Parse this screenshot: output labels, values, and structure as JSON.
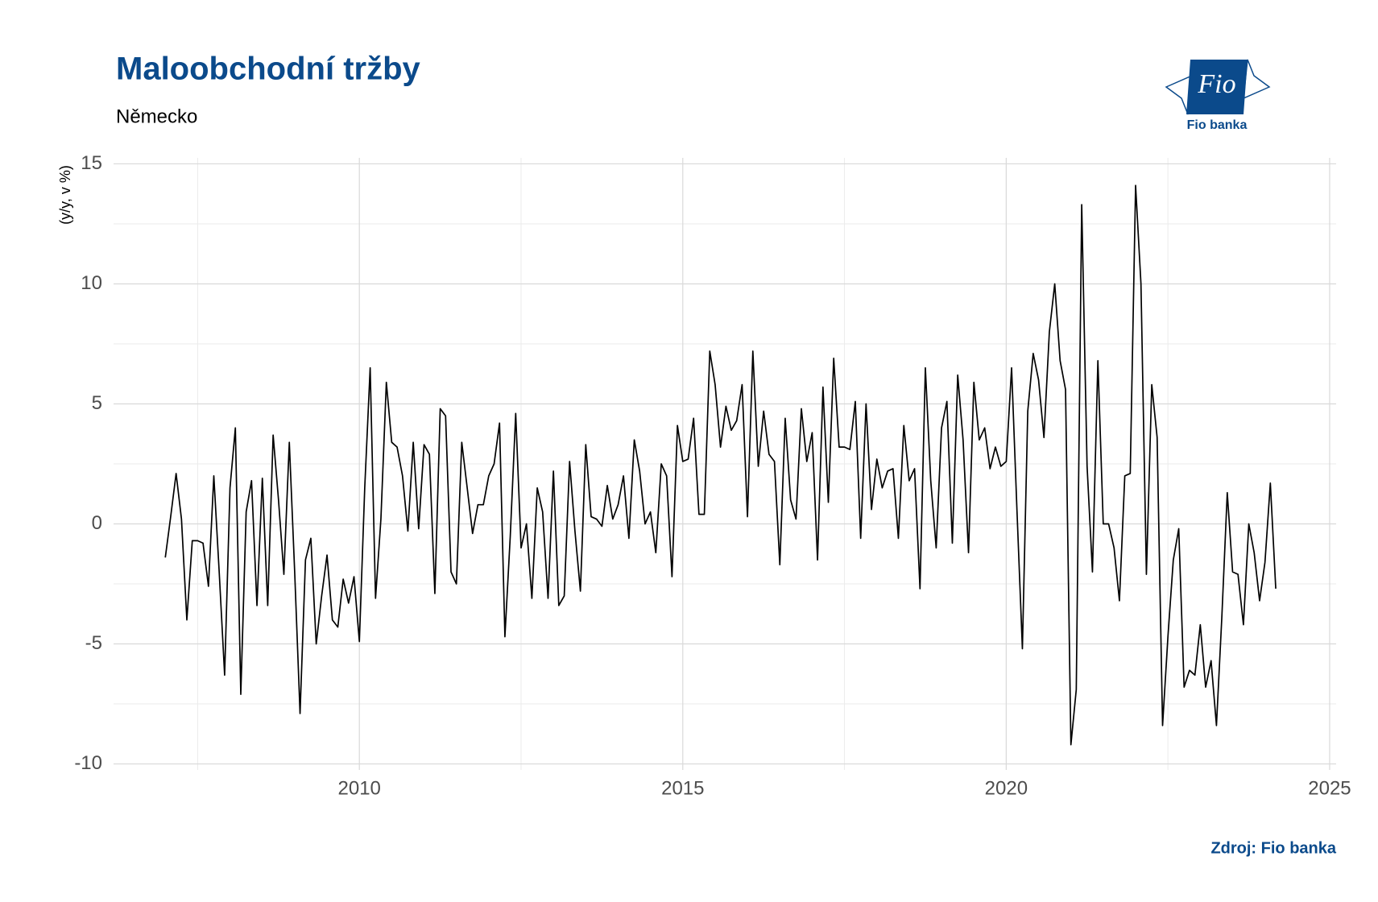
{
  "chart_data": {
    "type": "line",
    "title": "Maloobchodní tržby",
    "subtitle": "Německo",
    "y_label": "(y/y, v %)",
    "source": "Zdroj: Fio banka",
    "logo": {
      "mark": "Fio",
      "text": "Fio banka"
    },
    "xlim": [
      2006.2,
      2025.1
    ],
    "xticks": [
      2010,
      2015,
      2020,
      2025
    ],
    "ylim": [
      -10.25,
      15.25
    ],
    "yticks": [
      -10,
      -5,
      0,
      5,
      10,
      15
    ],
    "grid": true,
    "x": [
      2007,
      2007.083,
      2007.167,
      2007.25,
      2007.333,
      2007.417,
      2007.5,
      2007.583,
      2007.667,
      2007.75,
      2007.833,
      2007.917,
      2008,
      2008.083,
      2008.167,
      2008.25,
      2008.333,
      2008.417,
      2008.5,
      2008.583,
      2008.667,
      2008.75,
      2008.833,
      2008.917,
      2009,
      2009.083,
      2009.167,
      2009.25,
      2009.333,
      2009.417,
      2009.5,
      2009.583,
      2009.667,
      2009.75,
      2009.833,
      2009.917,
      2010,
      2010.083,
      2010.167,
      2010.25,
      2010.333,
      2010.417,
      2010.5,
      2010.583,
      2010.667,
      2010.75,
      2010.833,
      2010.917,
      2011,
      2011.083,
      2011.167,
      2011.25,
      2011.333,
      2011.417,
      2011.5,
      2011.583,
      2011.667,
      2011.75,
      2011.833,
      2011.917,
      2012,
      2012.083,
      2012.167,
      2012.25,
      2012.333,
      2012.417,
      2012.5,
      2012.583,
      2012.667,
      2012.75,
      2012.833,
      2012.917,
      2013,
      2013.083,
      2013.167,
      2013.25,
      2013.333,
      2013.417,
      2013.5,
      2013.583,
      2013.667,
      2013.75,
      2013.833,
      2013.917,
      2014,
      2014.083,
      2014.167,
      2014.25,
      2014.333,
      2014.417,
      2014.5,
      2014.583,
      2014.667,
      2014.75,
      2014.833,
      2014.917,
      2015,
      2015.083,
      2015.167,
      2015.25,
      2015.333,
      2015.417,
      2015.5,
      2015.583,
      2015.667,
      2015.75,
      2015.833,
      2015.917,
      2016,
      2016.083,
      2016.167,
      2016.25,
      2016.333,
      2016.417,
      2016.5,
      2016.583,
      2016.667,
      2016.75,
      2016.833,
      2016.917,
      2017,
      2017.083,
      2017.167,
      2017.25,
      2017.333,
      2017.417,
      2017.5,
      2017.583,
      2017.667,
      2017.75,
      2017.833,
      2017.917,
      2018,
      2018.083,
      2018.167,
      2018.25,
      2018.333,
      2018.417,
      2018.5,
      2018.583,
      2018.667,
      2018.75,
      2018.833,
      2018.917,
      2019,
      2019.083,
      2019.167,
      2019.25,
      2019.333,
      2019.417,
      2019.5,
      2019.583,
      2019.667,
      2019.75,
      2019.833,
      2019.917,
      2020,
      2020.083,
      2020.167,
      2020.25,
      2020.333,
      2020.417,
      2020.5,
      2020.583,
      2020.667,
      2020.75,
      2020.833,
      2020.917,
      2021,
      2021.083,
      2021.167,
      2021.25,
      2021.333,
      2021.417,
      2021.5,
      2021.583,
      2021.667,
      2021.75,
      2021.833,
      2021.917,
      2022,
      2022.083,
      2022.167,
      2022.25,
      2022.333,
      2022.417,
      2022.5,
      2022.583,
      2022.667,
      2022.75,
      2022.833,
      2022.917,
      2023,
      2023.083,
      2023.167,
      2023.25,
      2023.333,
      2023.417,
      2023.5,
      2023.583,
      2023.667,
      2023.75,
      2023.833,
      2023.917,
      2024,
      2024.083,
      2024.167
    ],
    "series": [
      {
        "color": "#000000",
        "values": [
          -1.4,
          0.3,
          2.1,
          0.2,
          -4.0,
          -0.7,
          -0.7,
          -0.8,
          -2.6,
          2.0,
          -2.0,
          -6.3,
          1.5,
          4.0,
          -7.1,
          0.5,
          1.8,
          -3.4,
          1.9,
          -3.4,
          3.7,
          1.0,
          -2.1,
          3.4,
          -2.0,
          -7.9,
          -1.5,
          -0.6,
          -5.0,
          -3.0,
          -1.3,
          -4.0,
          -4.3,
          -2.3,
          -3.3,
          -2.2,
          -4.9,
          1.5,
          6.5,
          -3.1,
          0.2,
          5.9,
          3.4,
          3.2,
          2.0,
          -0.3,
          3.4,
          -0.2,
          3.3,
          2.9,
          -2.9,
          4.8,
          4.5,
          -2.0,
          -2.5,
          3.4,
          1.5,
          -0.4,
          0.8,
          0.8,
          2.0,
          2.5,
          4.2,
          -4.7,
          -0.5,
          4.6,
          -1.0,
          0.0,
          -3.1,
          1.5,
          0.5,
          -3.1,
          2.2,
          -3.4,
          -3.0,
          2.6,
          -0.3,
          -2.8,
          3.3,
          0.3,
          0.2,
          -0.1,
          1.6,
          0.2,
          0.8,
          2.0,
          -0.6,
          3.5,
          2.2,
          0.0,
          0.5,
          -1.2,
          2.5,
          2.0,
          -2.2,
          4.1,
          2.6,
          2.7,
          4.4,
          0.4,
          0.4,
          7.2,
          5.8,
          3.2,
          4.9,
          3.9,
          4.3,
          5.8,
          0.3,
          7.2,
          2.4,
          4.7,
          2.9,
          2.6,
          -1.7,
          4.4,
          1.0,
          0.2,
          4.8,
          2.6,
          3.8,
          -1.5,
          5.7,
          0.9,
          6.9,
          3.2,
          3.2,
          3.1,
          5.1,
          -0.6,
          5.0,
          0.6,
          2.7,
          1.5,
          2.2,
          2.3,
          -0.6,
          4.1,
          1.8,
          2.3,
          -2.7,
          6.5,
          1.8,
          -1.0,
          4.0,
          5.1,
          -0.8,
          6.2,
          3.5,
          -1.2,
          5.9,
          3.5,
          4.0,
          2.3,
          3.2,
          2.4,
          2.6,
          6.5,
          0.5,
          -5.2,
          4.7,
          7.1,
          6.0,
          3.6,
          8.0,
          10.0,
          6.8,
          5.6,
          -9.2,
          -6.9,
          13.3,
          2.4,
          -2.0,
          6.8,
          0.0,
          0.0,
          -1.0,
          -3.2,
          2.0,
          2.1,
          14.1,
          10.0,
          -2.1,
          5.8,
          3.6,
          -8.4,
          -4.7,
          -1.5,
          -0.2,
          -6.8,
          -6.1,
          -6.3,
          -4.2,
          -6.8,
          -5.7,
          -8.4,
          -3.9,
          1.3,
          -2.0,
          -2.1,
          -4.2,
          0.0,
          -1.2,
          -3.2,
          -1.6,
          1.7,
          -2.7
        ]
      }
    ]
  }
}
